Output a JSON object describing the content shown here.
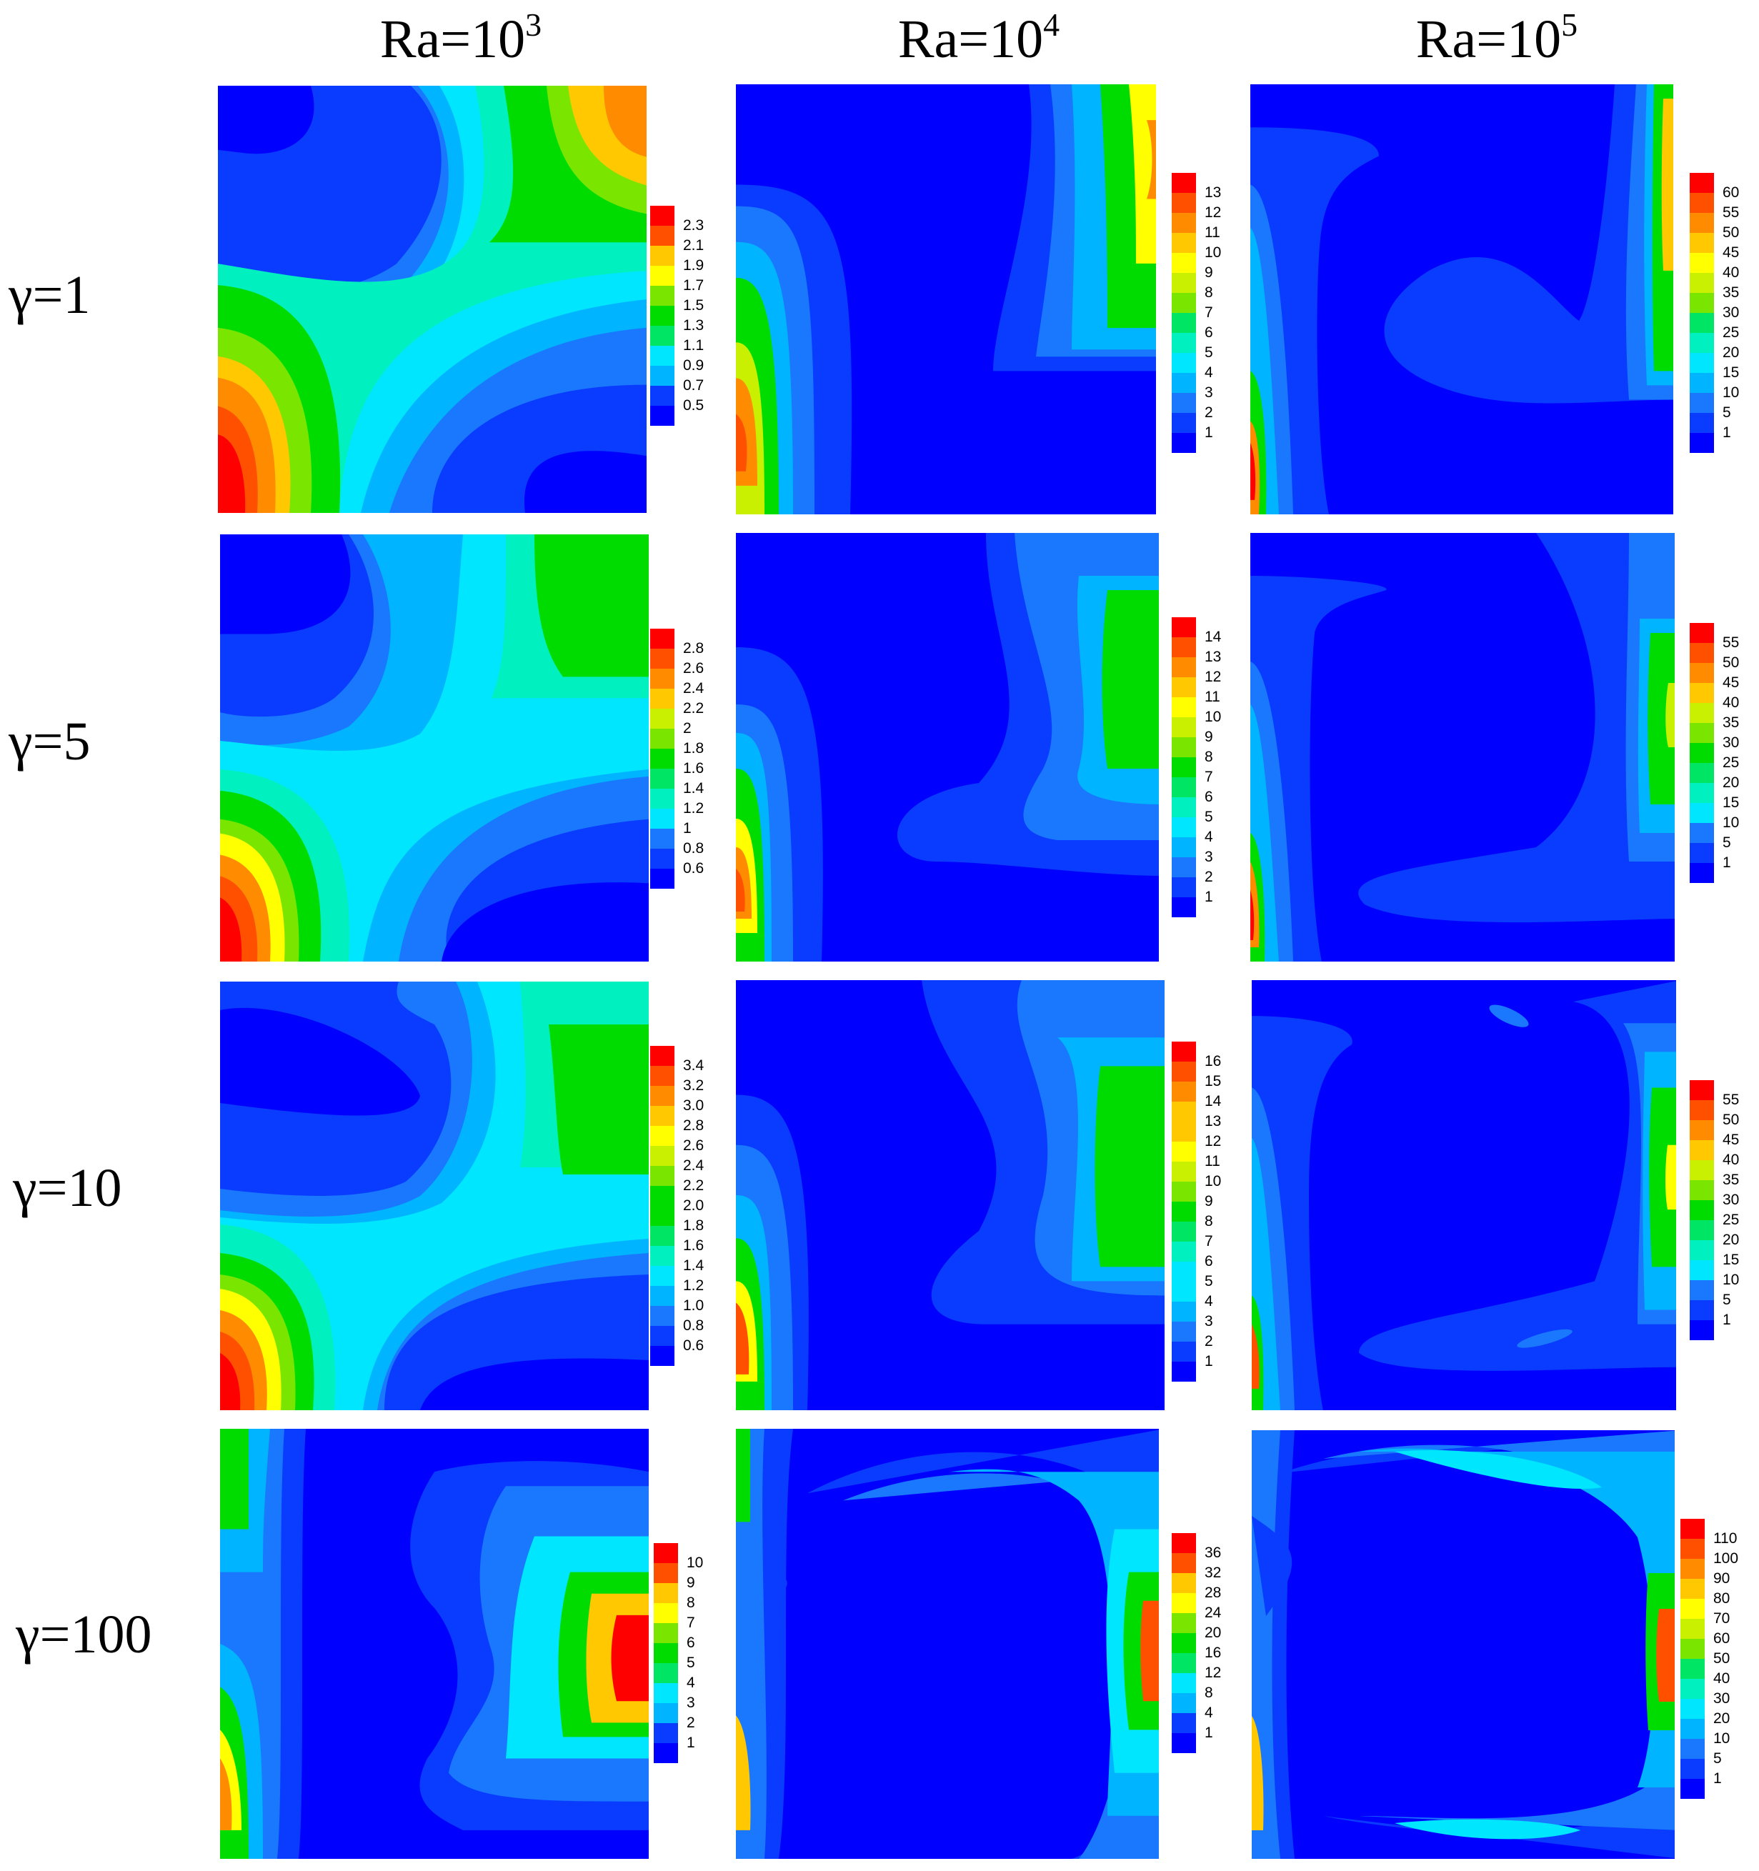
{
  "columns": [
    {
      "base": "Ra=10",
      "exp": "3"
    },
    {
      "base": "Ra=10",
      "exp": "4"
    },
    {
      "base": "Ra=10",
      "exp": "5"
    }
  ],
  "rows": [
    {
      "label": "γ=1"
    },
    {
      "label": "γ=5"
    },
    {
      "label": "γ=10"
    },
    {
      "label": "γ=100"
    }
  ],
  "colorbars": [
    [
      "2.3",
      "2.1",
      "1.9",
      "1.7",
      "1.5",
      "1.3",
      "1.1",
      "0.9",
      "0.7",
      "0.5"
    ],
    [
      "13",
      "12",
      "11",
      "10",
      "9",
      "8",
      "7",
      "6",
      "5",
      "4",
      "3",
      "2",
      "1"
    ],
    [
      "60",
      "55",
      "50",
      "45",
      "40",
      "35",
      "30",
      "25",
      "20",
      "15",
      "10",
      "5",
      "1"
    ],
    [
      "2.8",
      "2.6",
      "2.4",
      "2.2",
      "2",
      "1.8",
      "1.6",
      "1.4",
      "1.2",
      "1",
      "0.8",
      "0.6"
    ],
    [
      "14",
      "13",
      "12",
      "11",
      "10",
      "9",
      "8",
      "7",
      "6",
      "5",
      "4",
      "3",
      "2",
      "1"
    ],
    [
      "55",
      "50",
      "45",
      "40",
      "35",
      "30",
      "25",
      "20",
      "15",
      "10",
      "5",
      "1"
    ],
    [
      "3.4",
      "3.2",
      "3.0",
      "2.8",
      "2.6",
      "2.4",
      "2.2",
      "2.0",
      "1.8",
      "1.6",
      "1.4",
      "1.2",
      "1.0",
      "0.8",
      "0.6"
    ],
    [
      "16",
      "15",
      "14",
      "13",
      "12",
      "11",
      "10",
      "9",
      "8",
      "7",
      "6",
      "5",
      "4",
      "3",
      "2",
      "1"
    ],
    [
      "55",
      "50",
      "45",
      "40",
      "35",
      "30",
      "25",
      "20",
      "15",
      "10",
      "5",
      "1"
    ],
    [
      "10",
      "9",
      "8",
      "7",
      "6",
      "5",
      "4",
      "3",
      "2",
      "1"
    ],
    [
      "36",
      "32",
      "28",
      "24",
      "20",
      "16",
      "12",
      "8",
      "4",
      "1"
    ],
    [
      "110",
      "100",
      "90",
      "80",
      "70",
      "60",
      "50",
      "40",
      "30",
      "20",
      "10",
      "5",
      "1"
    ]
  ],
  "palette": [
    "#0000ff",
    "#0a3cff",
    "#1a78ff",
    "#00b4ff",
    "#00e6ff",
    "#00f0c0",
    "#00e664",
    "#00dc00",
    "#7ae600",
    "#c8f000",
    "#ffff00",
    "#ffc800",
    "#ff8c00",
    "#ff5000",
    "#ff0000"
  ]
}
